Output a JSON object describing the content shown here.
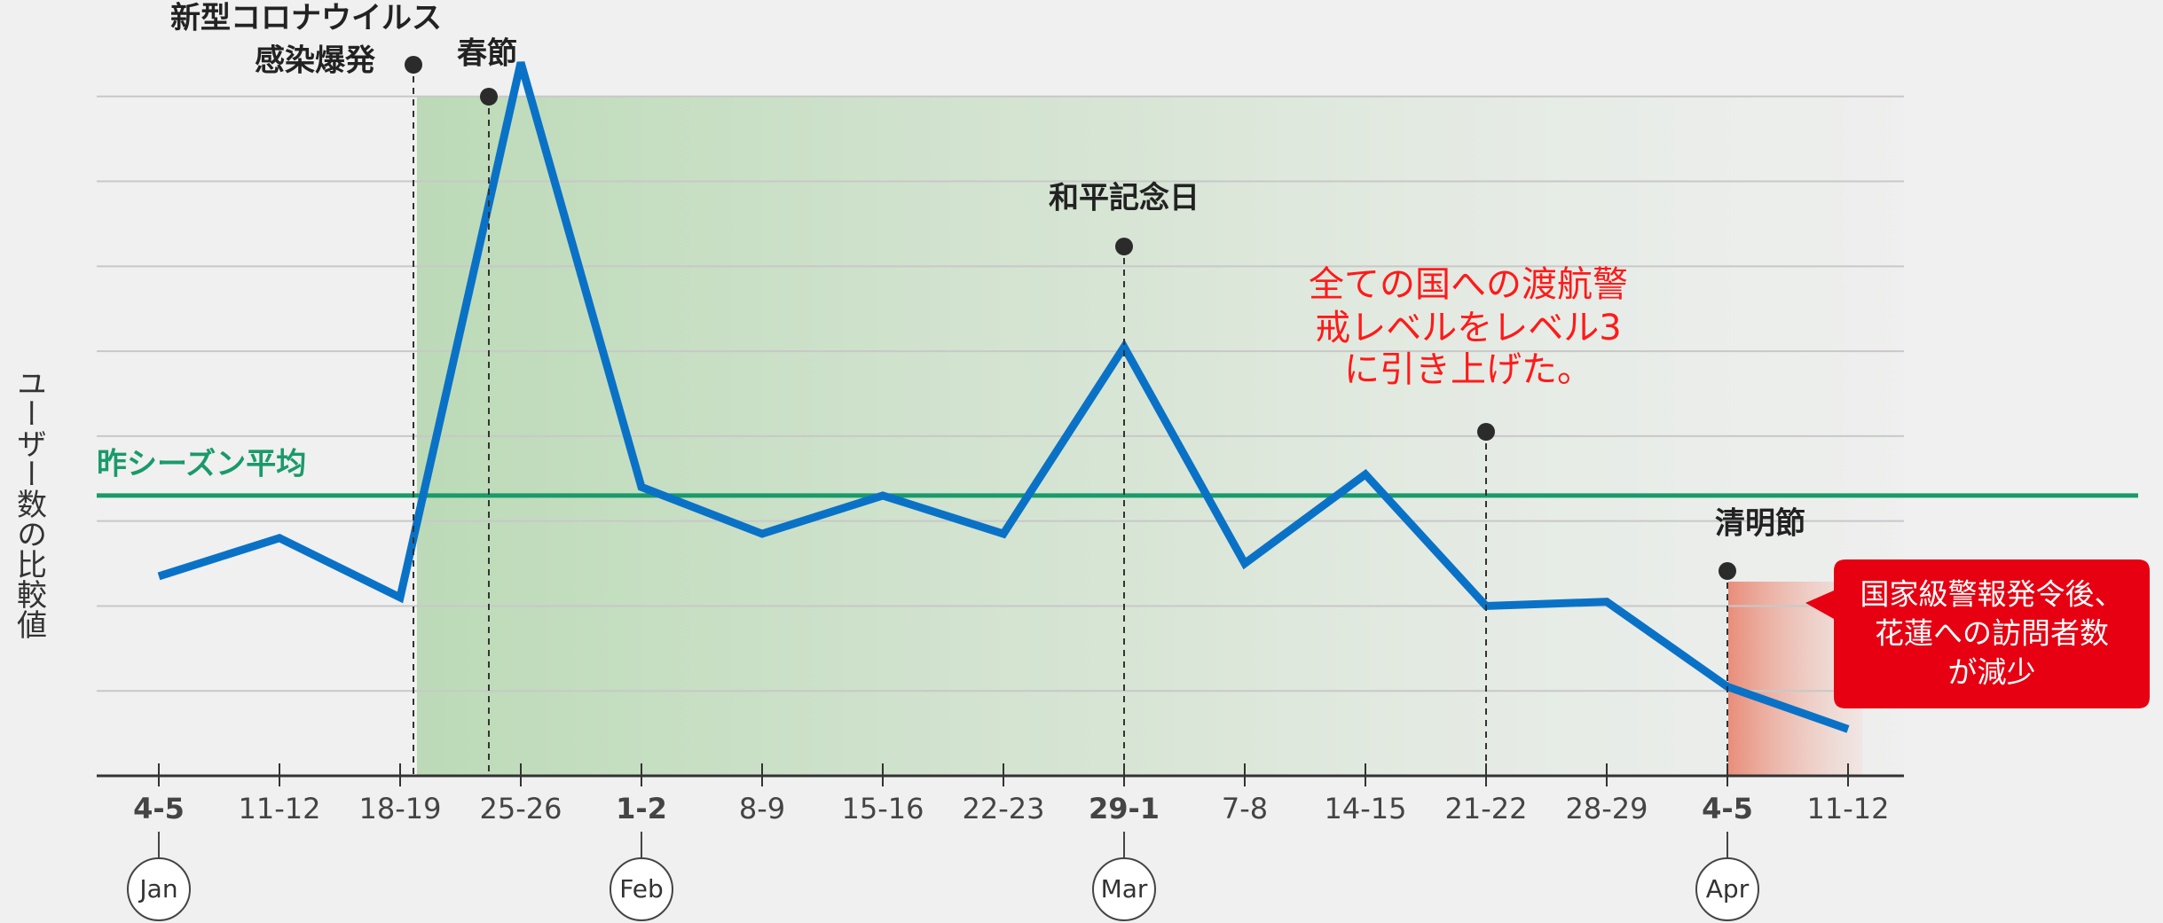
{
  "chart_data": {
    "type": "line",
    "y_label": "ユーザー数の比較値",
    "categories": [
      "4-5",
      "11-12",
      "18-19",
      "25-26",
      "1-2",
      "8-9",
      "15-16",
      "22-23",
      "29-1",
      "7-8",
      "14-15",
      "21-22",
      "28-29",
      "4-5",
      "11-12"
    ],
    "emphasized_categories": [
      0,
      4,
      8,
      13
    ],
    "month_labels": [
      "Jan",
      null,
      null,
      null,
      "Feb",
      null,
      null,
      null,
      "Mar",
      null,
      null,
      null,
      null,
      "Apr",
      null
    ],
    "values": [
      2.35,
      2.8,
      2.1,
      8.4,
      3.4,
      2.85,
      3.3,
      2.85,
      5.05,
      2.5,
      3.55,
      2.0,
      2.05,
      1.05,
      0.55
    ],
    "color": "#0a72c6",
    "average": {
      "label": "昨シーズン平均",
      "value": 3.3,
      "color": "#1a9a6a"
    },
    "ylim": [
      0,
      9
    ],
    "yticks": [
      0,
      1,
      2,
      3,
      4,
      5,
      6,
      7,
      8
    ],
    "grid": true,
    "events": [
      {
        "lines": [
          "新型コロナウイルス",
          "感染爆発"
        ]
      },
      {
        "lines": [
          "春節"
        ]
      },
      {
        "lines": [
          "和平記念日"
        ]
      },
      {
        "lines": [
          "全ての国への渡航警",
          "戒レベルをレベル3",
          "に引き上げた。"
        ]
      },
      {
        "lines": [
          "清明節"
        ]
      }
    ],
    "callout": {
      "lines": [
        "国家級警報発令後、",
        "花蓮への訪問者数",
        "が減少"
      ]
    }
  }
}
